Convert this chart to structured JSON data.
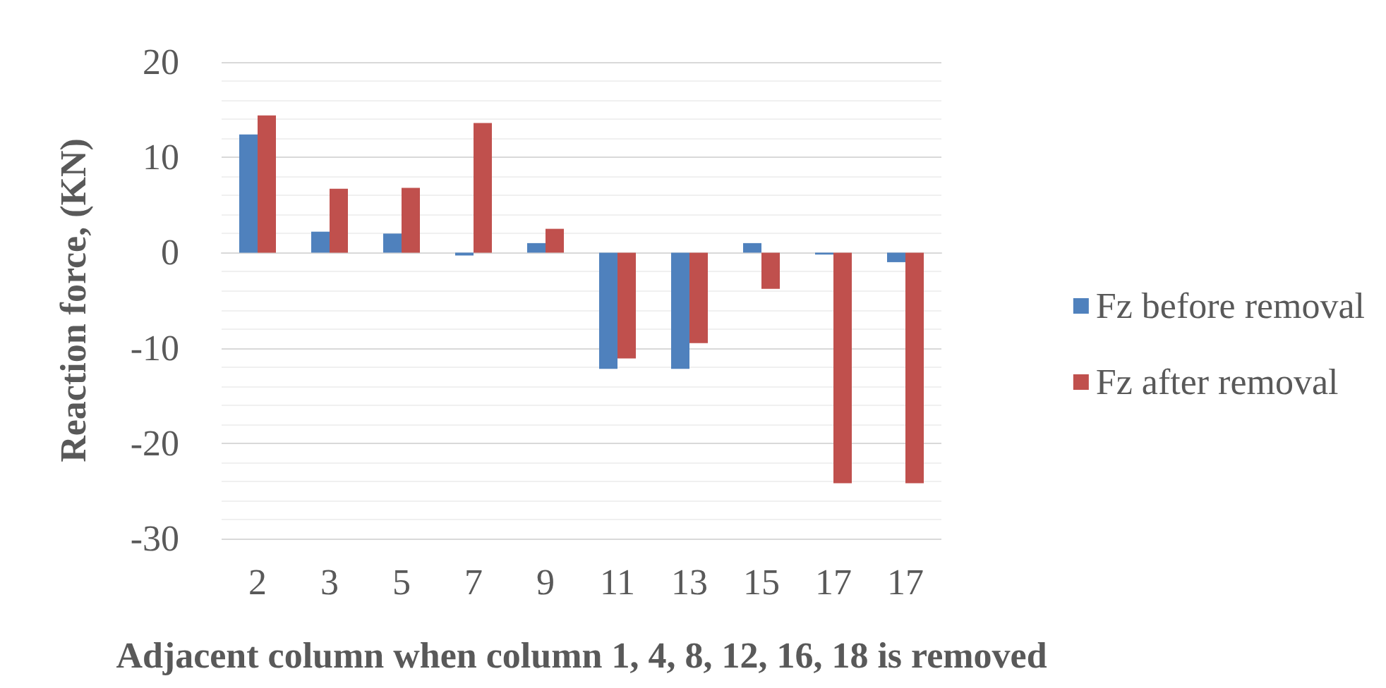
{
  "chart_data": {
    "type": "bar",
    "xlabel": "Adjacent column when column 1, 4, 8, 12, 16, 18 is removed",
    "ylabel": "Reaction force, (KN)",
    "categories": [
      "2",
      "3",
      "5",
      "7",
      "9",
      "11",
      "13",
      "15",
      "17",
      "17"
    ],
    "series": [
      {
        "name": "Fz before removal",
        "color": "#4f81bd",
        "values": [
          12.4,
          2.2,
          2.0,
          -0.3,
          1.0,
          -12.2,
          -12.2,
          1.0,
          -0.2,
          -1.0
        ]
      },
      {
        "name": "Fz after removal",
        "color": "#c0504d",
        "values": [
          14.4,
          6.7,
          6.8,
          13.6,
          2.5,
          -11.1,
          -9.5,
          -3.8,
          -24.2,
          -24.2
        ]
      }
    ],
    "ylim": [
      -30,
      20
    ],
    "yticks": [
      -30,
      -20,
      -10,
      0,
      10,
      20
    ],
    "grid": true,
    "legend": "right"
  }
}
